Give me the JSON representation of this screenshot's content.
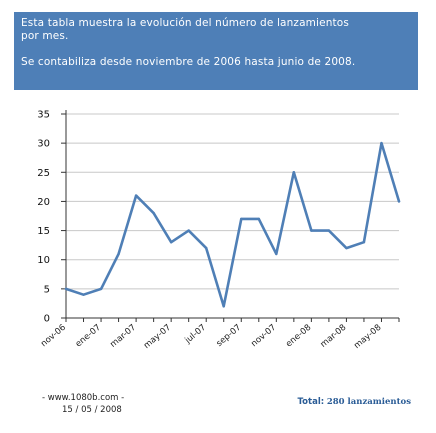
{
  "banner": {
    "line1": "Esta tabla muestra la evolución del número de lanzamientos",
    "line2": "por mes.",
    "line3": "Se contabiliza desde noviembre de 2006 hasta junio de 2008."
  },
  "chart_data": {
    "type": "line",
    "title": "",
    "xlabel": "",
    "ylabel": "",
    "ylim": [
      0,
      35
    ],
    "yticks": [
      0,
      5,
      10,
      15,
      20,
      25,
      30,
      35
    ],
    "grid": true,
    "categories": [
      "nov-06",
      "dic-06",
      "ene-07",
      "feb-07",
      "mar-07",
      "abr-07",
      "may-07",
      "jun-07",
      "jul-07",
      "ago-07",
      "sep-07",
      "oct-07",
      "nov-07",
      "dic-07",
      "ene-08",
      "feb-08",
      "mar-08",
      "abr-08",
      "may-08",
      "jun-08"
    ],
    "xtick_labels": [
      "nov-06",
      "",
      "ene-07",
      "",
      "mar-07",
      "",
      "may-07",
      "",
      "jul-07",
      "",
      "sep-07",
      "",
      "nov-07",
      "",
      "ene-08",
      "",
      "mar-08",
      "",
      "may-08",
      ""
    ],
    "values": [
      5,
      4,
      5,
      11,
      21,
      18,
      13,
      15,
      12,
      2,
      17,
      17,
      11,
      25,
      15,
      15,
      12,
      13,
      30,
      20
    ],
    "line_color": "#4f7fb6"
  },
  "footer": {
    "site": "- www.1080b.com -",
    "date": "15 / 05 / 2008",
    "total_label": "Total:",
    "total_value": "280 lanzamientos"
  }
}
